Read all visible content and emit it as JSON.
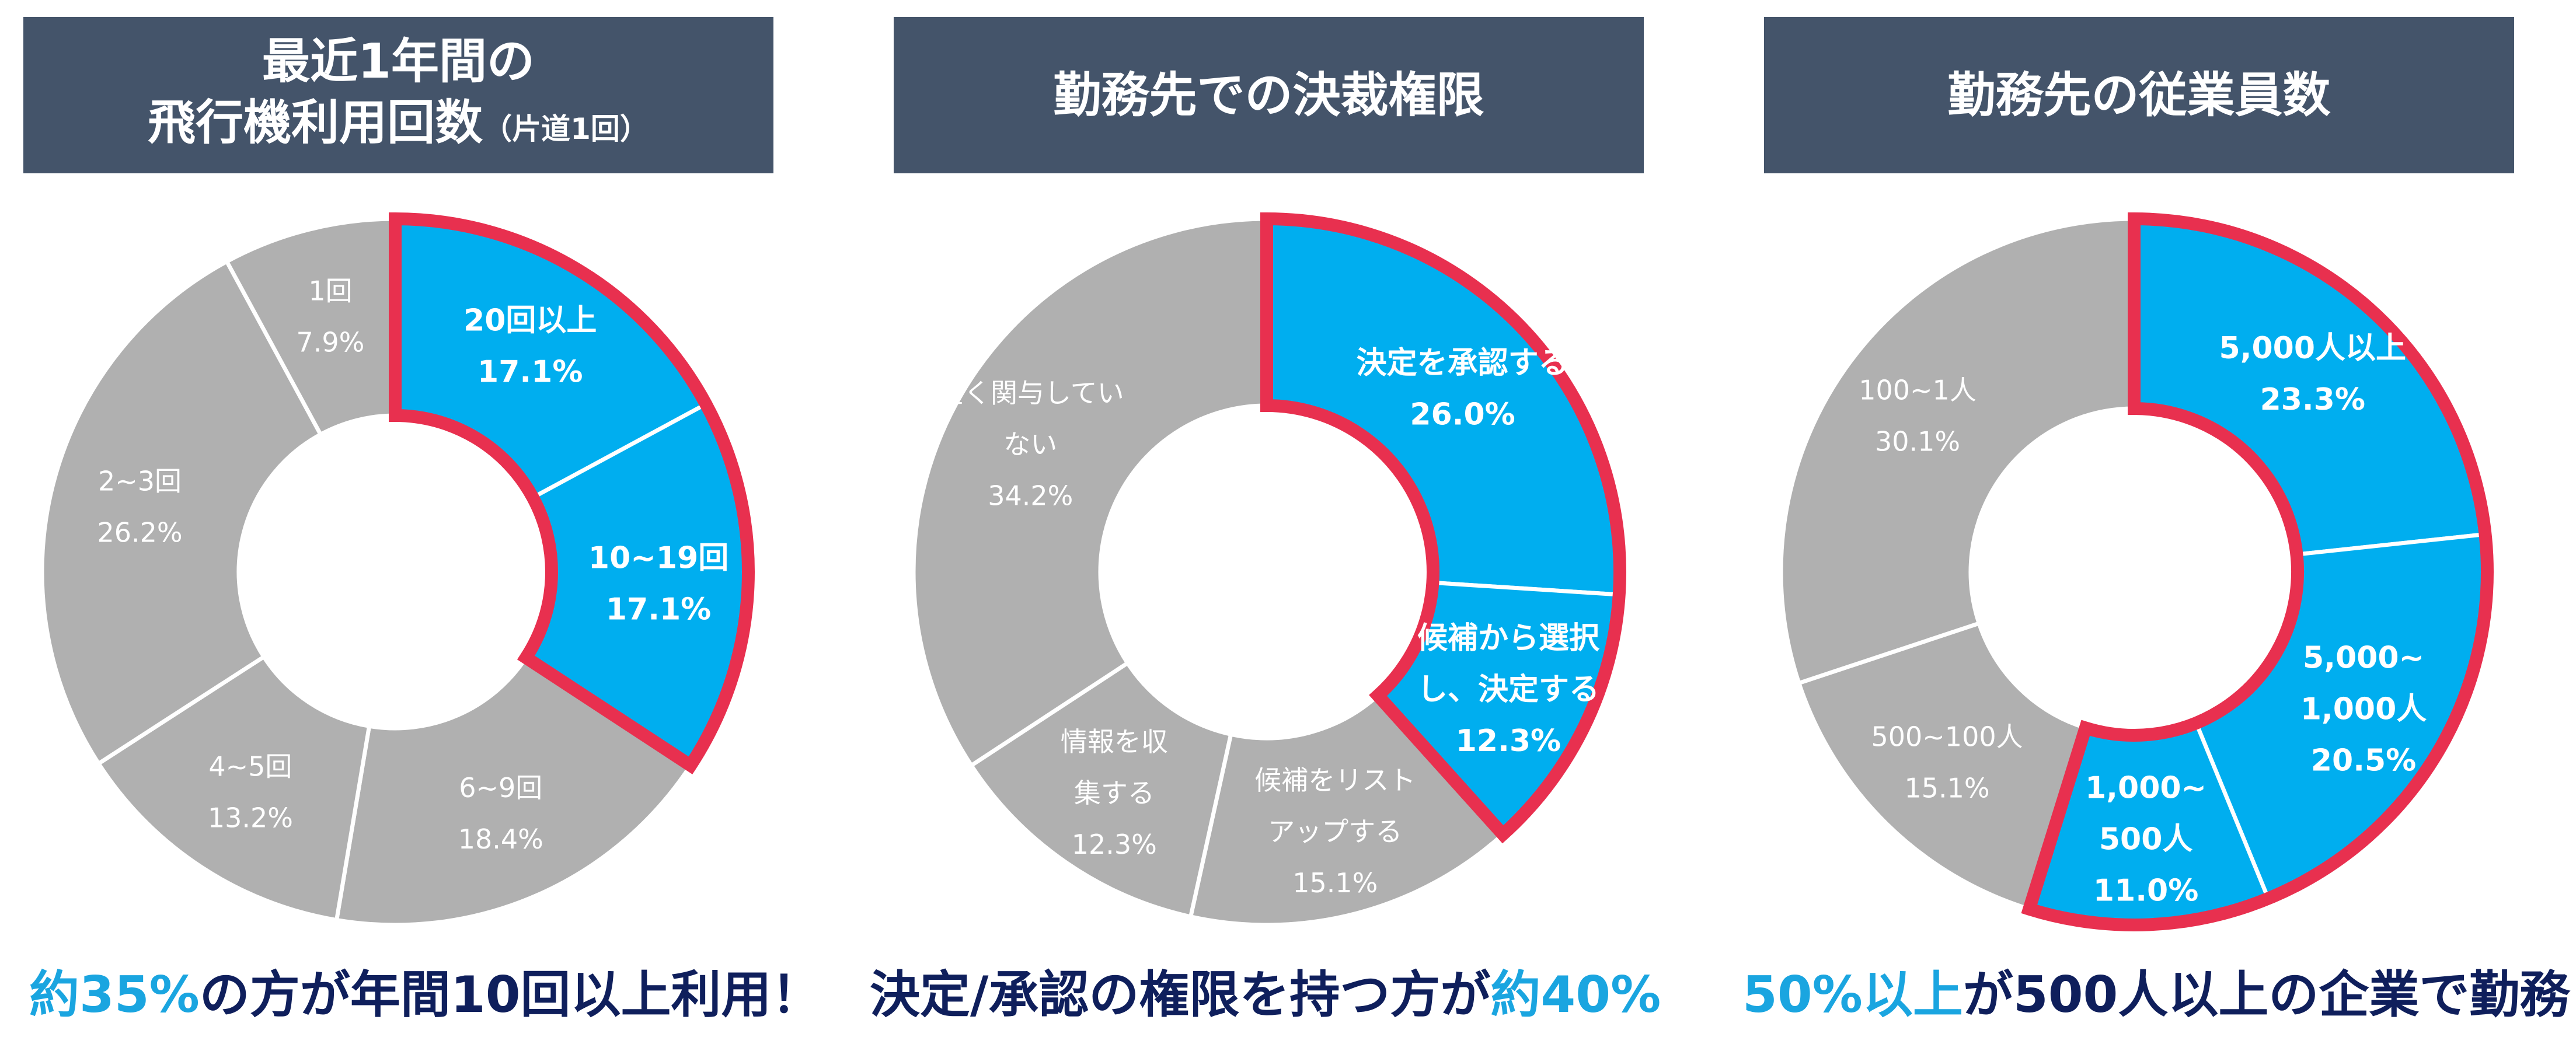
{
  "colors": {
    "header_bg": "#44546a",
    "slice_gray": "#b0b0b0",
    "slice_blue": "#00aeef",
    "outline_red": "#e8304f",
    "caption_blue": "#1aa5e0",
    "caption_navy": "#0f1f5c"
  },
  "headers": {
    "chart1": {
      "line1": "最近1年間の",
      "line2": "飛行機利用回数",
      "line2_small": "（片道1回）"
    },
    "chart2": {
      "line1": "勤務先での決裁権限"
    },
    "chart3": {
      "line1": "勤務先の従業員数"
    }
  },
  "captions": {
    "chart1": {
      "highlight": "約35%",
      "rest": "の方が年間10回以上利用！"
    },
    "chart2": {
      "rest": "決定/承認の権限を持つ方が",
      "highlight": "約40%"
    },
    "chart3": {
      "highlight": "50%以上",
      "rest": "が500人以上の企業で勤務"
    }
  },
  "chart_data": [
    {
      "type": "pie",
      "subtype": "donut",
      "title": "最近1年間の飛行機利用回数（片道1回）",
      "start": "top",
      "direction": "clockwise",
      "segments": [
        {
          "label_lines": [
            "20回以上"
          ],
          "value": 17.1,
          "value_label": "17.1%",
          "highlighted": true
        },
        {
          "label_lines": [
            "10~19回"
          ],
          "value": 17.1,
          "value_label": "17.1%",
          "highlighted": true
        },
        {
          "label_lines": [
            "6~9回"
          ],
          "value": 18.4,
          "value_label": "18.4%",
          "highlighted": false
        },
        {
          "label_lines": [
            "4~5回"
          ],
          "value": 13.2,
          "value_label": "13.2%",
          "highlighted": false
        },
        {
          "label_lines": [
            "2~3回"
          ],
          "value": 26.2,
          "value_label": "26.2%",
          "highlighted": false
        },
        {
          "label_lines": [
            "1回"
          ],
          "value": 7.9,
          "value_label": "7.9%",
          "highlighted": false
        }
      ]
    },
    {
      "type": "pie",
      "subtype": "donut",
      "title": "勤務先での決裁権限",
      "start": "top",
      "direction": "clockwise",
      "segments": [
        {
          "label_lines": [
            "決定を承認する"
          ],
          "value": 26.0,
          "value_label": "26.0%",
          "highlighted": true
        },
        {
          "label_lines": [
            "候補から選択",
            "し、決定する"
          ],
          "value": 12.3,
          "value_label": "12.3%",
          "highlighted": true
        },
        {
          "label_lines": [
            "候補をリスト",
            "アップする"
          ],
          "value": 15.1,
          "value_label": "15.1%",
          "highlighted": false
        },
        {
          "label_lines": [
            "情報を収",
            "集する"
          ],
          "value": 12.3,
          "value_label": "12.3%",
          "highlighted": false
        },
        {
          "label_lines": [
            "全く関与してい",
            "ない"
          ],
          "value": 34.2,
          "value_label": "34.2%",
          "highlighted": false
        }
      ]
    },
    {
      "type": "pie",
      "subtype": "donut",
      "title": "勤務先の従業員数",
      "start": "top",
      "direction": "clockwise",
      "segments": [
        {
          "label_lines": [
            "5,000人以上"
          ],
          "value": 23.3,
          "value_label": "23.3%",
          "highlighted": true
        },
        {
          "label_lines": [
            "5,000~",
            "1,000人"
          ],
          "value": 20.5,
          "value_label": "20.5%",
          "highlighted": true
        },
        {
          "label_lines": [
            "1,000~",
            "500人"
          ],
          "value": 11.0,
          "value_label": "11.0%",
          "highlighted": true
        },
        {
          "label_lines": [
            "500~100人"
          ],
          "value": 15.1,
          "value_label": "15.1%",
          "highlighted": false
        },
        {
          "label_lines": [
            "100~1人"
          ],
          "value": 30.1,
          "value_label": "30.1%",
          "highlighted": false
        }
      ]
    }
  ]
}
